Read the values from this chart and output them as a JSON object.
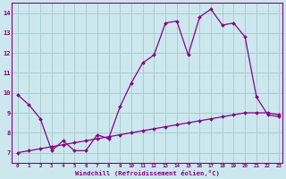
{
  "xlabel": "Windchill (Refroidissement éolien,°C)",
  "background_color": "#cce8ee",
  "grid_color": "#aacccc",
  "line_color": "#880088",
  "xlim": [
    -0.5,
    23.3
  ],
  "ylim": [
    6.5,
    14.5
  ],
  "xticks": [
    0,
    1,
    2,
    3,
    4,
    5,
    6,
    7,
    8,
    9,
    10,
    11,
    12,
    13,
    14,
    15,
    16,
    17,
    18,
    19,
    20,
    21,
    22,
    23
  ],
  "yticks": [
    7,
    8,
    9,
    10,
    11,
    12,
    13,
    14
  ],
  "line1_x": [
    0,
    1,
    2,
    3,
    4,
    5,
    6,
    7,
    8,
    9,
    10,
    11,
    12,
    13,
    14,
    15,
    16,
    17,
    18,
    19,
    20,
    21,
    22,
    23
  ],
  "line1_y": [
    9.9,
    9.4,
    8.7,
    7.1,
    7.6,
    7.1,
    7.1,
    7.9,
    7.7,
    9.3,
    10.5,
    11.5,
    11.9,
    13.5,
    13.6,
    11.9,
    13.8,
    14.2,
    13.4,
    13.5,
    12.8,
    9.8,
    8.9,
    8.8
  ],
  "line2_x": [
    0,
    1,
    2,
    3,
    4,
    5,
    6,
    7,
    8,
    9,
    10,
    11,
    12,
    13,
    14,
    15,
    16,
    17,
    18,
    19,
    20,
    21,
    22,
    23
  ],
  "line2_y": [
    7.0,
    7.1,
    7.2,
    7.3,
    7.4,
    7.5,
    7.6,
    7.7,
    7.8,
    7.9,
    8.0,
    8.1,
    8.2,
    8.3,
    8.4,
    8.5,
    8.6,
    8.7,
    8.8,
    8.9,
    9.0,
    9.0,
    9.0,
    8.9
  ]
}
